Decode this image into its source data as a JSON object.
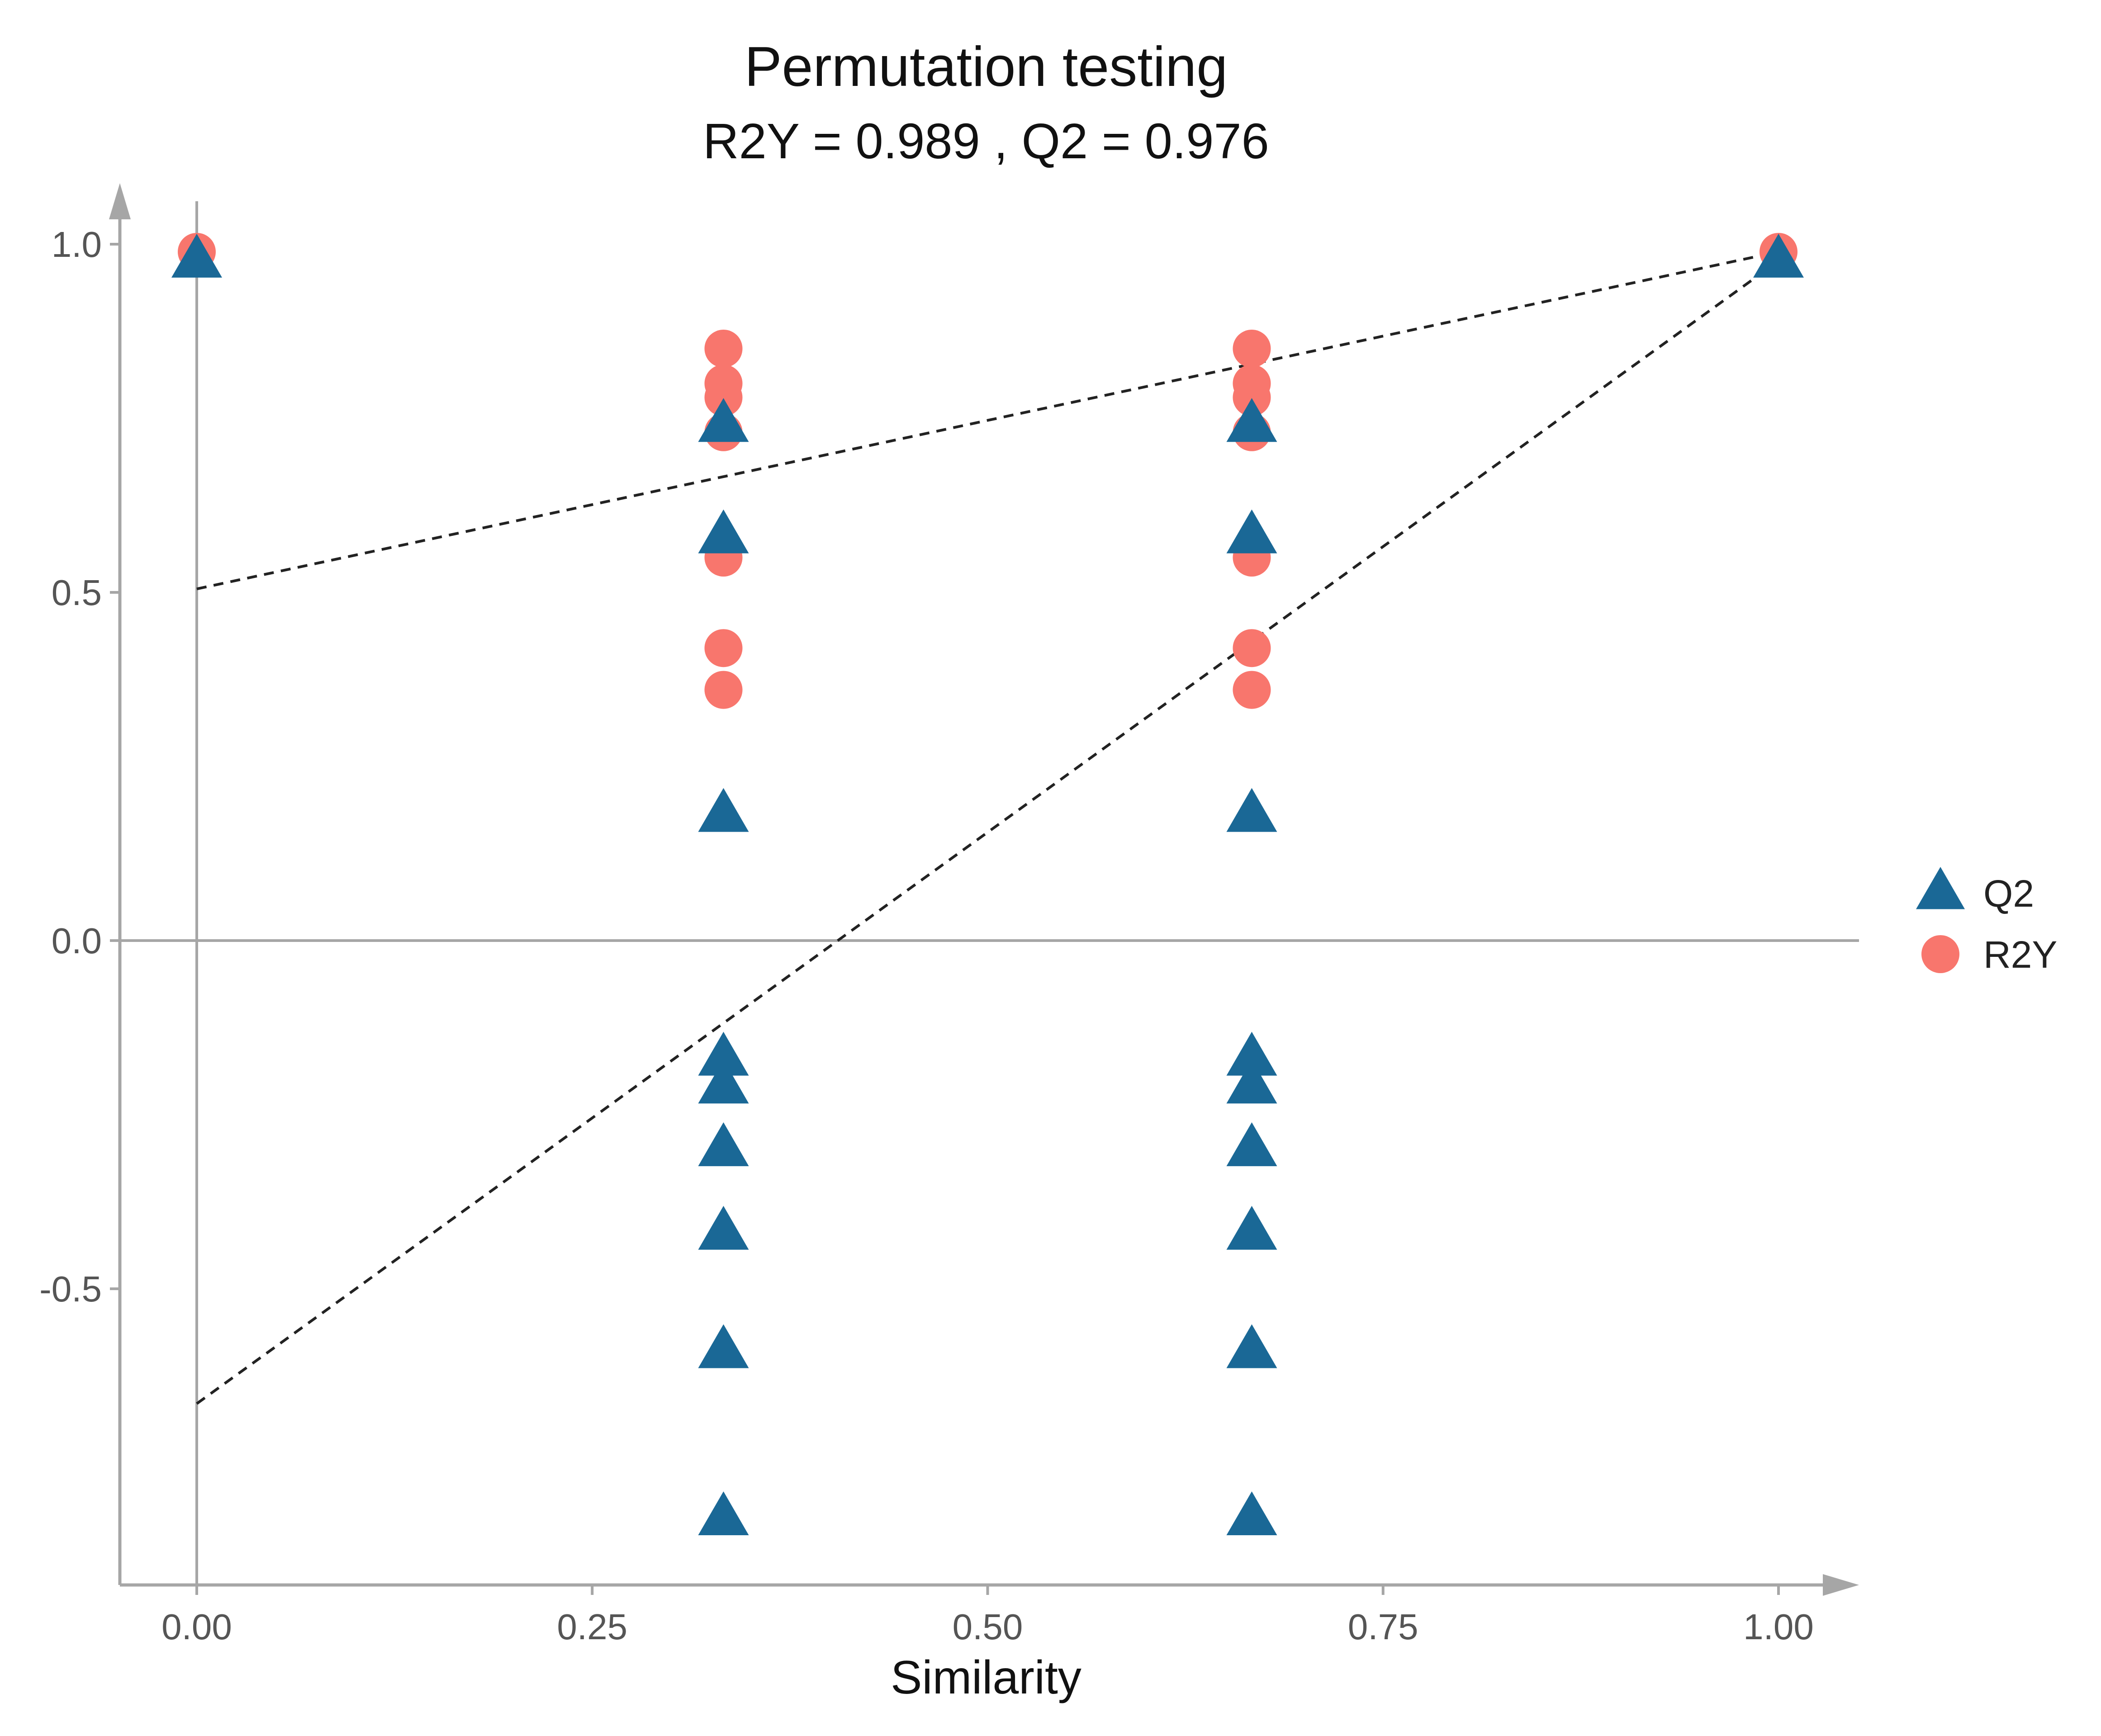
{
  "chart_data": {
    "type": "scatter",
    "title": "Permutation testing",
    "subtitle": "R2Y = 0.989 ,  Q2 = 0.976",
    "xlabel": "Similarity",
    "ylabel": "",
    "xlim": [
      -0.05,
      1.06
    ],
    "ylim": [
      -0.93,
      1.07
    ],
    "x_ticks": [
      0.0,
      0.25,
      0.5,
      0.75,
      1.0
    ],
    "x_tick_labels": [
      "0.00",
      "0.25",
      "0.50",
      "0.75",
      "1.00"
    ],
    "y_ticks": [
      -0.5,
      0.0,
      0.5,
      1.0
    ],
    "y_tick_labels": [
      "-0.5",
      "0.0",
      "0.5",
      "1.0"
    ],
    "grid": false,
    "legend_position": "right",
    "series": [
      {
        "name": "R2Y",
        "marker": "circle",
        "color": "#F8766D",
        "points": [
          [
            0.0,
            0.989
          ],
          [
            0.333,
            0.85
          ],
          [
            0.333,
            0.8
          ],
          [
            0.333,
            0.78
          ],
          [
            0.333,
            0.73
          ],
          [
            0.333,
            0.55
          ],
          [
            0.333,
            0.42
          ],
          [
            0.333,
            0.36
          ],
          [
            0.667,
            0.85
          ],
          [
            0.667,
            0.8
          ],
          [
            0.667,
            0.78
          ],
          [
            0.667,
            0.73
          ],
          [
            0.667,
            0.55
          ],
          [
            0.667,
            0.42
          ],
          [
            0.667,
            0.36
          ],
          [
            1.0,
            0.989
          ]
        ]
      },
      {
        "name": "Q2",
        "marker": "triangle",
        "color": "#1A6896",
        "points": [
          [
            0.0,
            0.976
          ],
          [
            0.333,
            0.74
          ],
          [
            0.333,
            0.58
          ],
          [
            0.333,
            0.18
          ],
          [
            0.333,
            -0.17
          ],
          [
            0.333,
            -0.21
          ],
          [
            0.333,
            -0.3
          ],
          [
            0.333,
            -0.42
          ],
          [
            0.333,
            -0.59
          ],
          [
            0.333,
            -0.83
          ],
          [
            0.667,
            0.74
          ],
          [
            0.667,
            0.58
          ],
          [
            0.667,
            0.18
          ],
          [
            0.667,
            -0.17
          ],
          [
            0.667,
            -0.21
          ],
          [
            0.667,
            -0.3
          ],
          [
            0.667,
            -0.42
          ],
          [
            0.667,
            -0.59
          ],
          [
            0.667,
            -0.83
          ],
          [
            1.0,
            0.976
          ]
        ]
      }
    ],
    "reference_lines": [
      {
        "name": "R2Y regression",
        "from": [
          0.0,
          0.505
        ],
        "to": [
          1.0,
          0.989
        ],
        "style": "dashed"
      },
      {
        "name": "Q2 regression",
        "from": [
          0.0,
          -0.665
        ],
        "to": [
          1.0,
          0.976
        ],
        "style": "dashed"
      }
    ],
    "legend": [
      {
        "label": "Q2",
        "marker": "triangle",
        "color": "#1A6896"
      },
      {
        "label": "R2Y",
        "marker": "circle",
        "color": "#F8766D"
      }
    ]
  }
}
